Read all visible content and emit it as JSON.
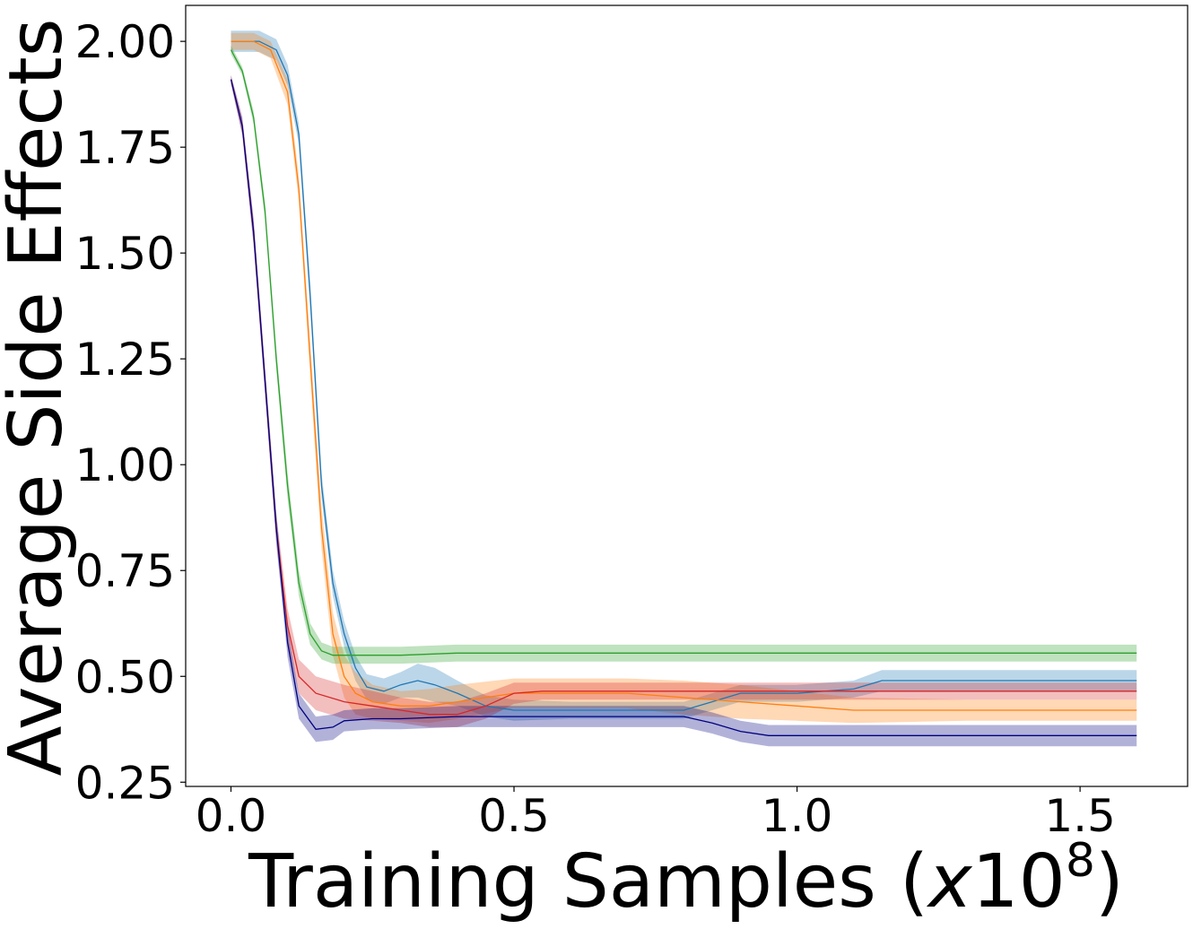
{
  "chart_data": {
    "type": "line",
    "xlabel": "Training Samples (",
    "xlabel_var": "x",
    "xlabel_num": "10",
    "xlabel_exp": "8",
    "xlabel_close": ")",
    "ylabel": "Average Side Effects",
    "xlim": [
      -0.08,
      1.69
    ],
    "ylim": [
      0.24,
      2.085
    ],
    "xticks": [
      0.0,
      0.5,
      1.0,
      1.5
    ],
    "xtick_labels": [
      "0.0",
      "0.5",
      "1.0",
      "1.5"
    ],
    "yticks": [
      0.25,
      0.5,
      0.75,
      1.0,
      1.25,
      1.5,
      1.75,
      2.0
    ],
    "ytick_labels": [
      "0.25",
      "0.50",
      "0.75",
      "1.00",
      "1.25",
      "1.50",
      "1.75",
      "2.00"
    ],
    "grid": false,
    "series": [
      {
        "color": "#1f77b4",
        "x": [
          0.0,
          0.05,
          0.08,
          0.1,
          0.12,
          0.14,
          0.16,
          0.18,
          0.2,
          0.22,
          0.24,
          0.27,
          0.3,
          0.33,
          0.36,
          0.4,
          0.45,
          0.5,
          0.6,
          0.7,
          0.8,
          0.85,
          0.9,
          1.0,
          1.1,
          1.15,
          1.2,
          1.6
        ],
        "y": [
          2.0,
          2.0,
          1.98,
          1.92,
          1.78,
          1.4,
          0.95,
          0.72,
          0.6,
          0.52,
          0.475,
          0.465,
          0.48,
          0.49,
          0.48,
          0.46,
          0.43,
          0.42,
          0.42,
          0.42,
          0.42,
          0.44,
          0.46,
          0.46,
          0.47,
          0.49,
          0.49,
          0.49
        ],
        "band": [
          0.025,
          0.025,
          0.025,
          0.025,
          0.025,
          0.03,
          0.03,
          0.03,
          0.03,
          0.03,
          0.03,
          0.03,
          0.03,
          0.04,
          0.04,
          0.03,
          0.025,
          0.025,
          0.02,
          0.02,
          0.02,
          0.02,
          0.02,
          0.02,
          0.02,
          0.025,
          0.025,
          0.025
        ]
      },
      {
        "color": "#ff7f0e",
        "x": [
          0.0,
          0.04,
          0.07,
          0.1,
          0.12,
          0.14,
          0.16,
          0.18,
          0.2,
          0.22,
          0.25,
          0.3,
          0.35,
          0.4,
          0.5,
          0.6,
          0.7,
          0.8,
          0.9,
          1.0,
          1.1,
          1.3,
          1.6
        ],
        "y": [
          2.0,
          2.0,
          1.98,
          1.88,
          1.65,
          1.25,
          0.85,
          0.6,
          0.5,
          0.46,
          0.44,
          0.43,
          0.43,
          0.44,
          0.46,
          0.46,
          0.46,
          0.45,
          0.44,
          0.43,
          0.42,
          0.42,
          0.42
        ],
        "band": [
          0.02,
          0.02,
          0.02,
          0.03,
          0.03,
          0.04,
          0.05,
          0.05,
          0.05,
          0.05,
          0.04,
          0.035,
          0.04,
          0.04,
          0.035,
          0.035,
          0.035,
          0.04,
          0.04,
          0.035,
          0.03,
          0.025,
          0.025
        ]
      },
      {
        "color": "#2ca02c",
        "x": [
          0.0,
          0.02,
          0.04,
          0.06,
          0.08,
          0.1,
          0.12,
          0.14,
          0.16,
          0.18,
          0.2,
          0.25,
          0.3,
          0.4,
          1.6
        ],
        "y": [
          1.98,
          1.93,
          1.82,
          1.6,
          1.25,
          0.95,
          0.72,
          0.6,
          0.56,
          0.55,
          0.55,
          0.55,
          0.55,
          0.555,
          0.555
        ],
        "band": [
          0.01,
          0.01,
          0.015,
          0.02,
          0.025,
          0.03,
          0.03,
          0.025,
          0.02,
          0.02,
          0.02,
          0.02,
          0.02,
          0.02,
          0.02
        ]
      },
      {
        "color": "#d62728",
        "x": [
          0.0,
          0.02,
          0.04,
          0.06,
          0.08,
          0.1,
          0.12,
          0.15,
          0.2,
          0.25,
          0.3,
          0.35,
          0.4,
          0.45,
          0.5,
          0.55,
          0.6,
          0.7,
          0.8,
          1.0,
          1.2,
          1.6
        ],
        "y": [
          1.91,
          1.8,
          1.55,
          1.2,
          0.85,
          0.62,
          0.5,
          0.46,
          0.44,
          0.43,
          0.42,
          0.41,
          0.41,
          0.43,
          0.46,
          0.465,
          0.465,
          0.465,
          0.465,
          0.465,
          0.465,
          0.465
        ],
        "band": [
          0.01,
          0.02,
          0.03,
          0.03,
          0.035,
          0.04,
          0.04,
          0.04,
          0.04,
          0.035,
          0.03,
          0.03,
          0.03,
          0.03,
          0.025,
          0.02,
          0.02,
          0.02,
          0.02,
          0.02,
          0.02,
          0.02
        ]
      },
      {
        "color": "#000080",
        "x": [
          0.0,
          0.02,
          0.04,
          0.06,
          0.08,
          0.1,
          0.12,
          0.15,
          0.18,
          0.2,
          0.25,
          0.3,
          0.4,
          0.5,
          0.6,
          0.8,
          0.85,
          0.9,
          0.95,
          1.0,
          1.2,
          1.6
        ],
        "y": [
          1.91,
          1.8,
          1.55,
          1.2,
          0.85,
          0.58,
          0.43,
          0.375,
          0.38,
          0.395,
          0.4,
          0.4,
          0.405,
          0.405,
          0.405,
          0.405,
          0.39,
          0.37,
          0.36,
          0.36,
          0.36,
          0.36
        ],
        "band": [
          0.01,
          0.02,
          0.03,
          0.03,
          0.035,
          0.035,
          0.03,
          0.03,
          0.03,
          0.025,
          0.025,
          0.025,
          0.025,
          0.025,
          0.025,
          0.025,
          0.025,
          0.025,
          0.025,
          0.025,
          0.025,
          0.025
        ]
      }
    ]
  }
}
